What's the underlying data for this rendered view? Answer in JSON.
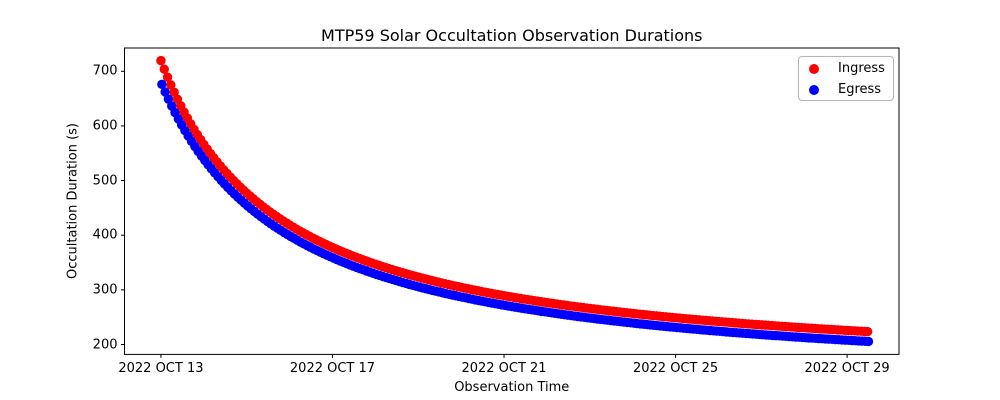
{
  "figure": {
    "title": "MTP59 Solar Occultation Observation Durations"
  },
  "chart_data": {
    "type": "scatter",
    "title": "MTP59 Solar Occultation Observation Durations",
    "xlabel": "Observation Time",
    "ylabel": "Occultation Duration (s)",
    "grid": false,
    "background": "#ffffff",
    "x_axis": {
      "unit": "days since 2022 OCT 13 00:00",
      "lim_days": [
        -0.85,
        17.21
      ],
      "tick_positions_days": [
        0,
        4,
        8,
        12,
        16
      ],
      "tick_labels": [
        "2022 OCT 13",
        "2022 OCT 17",
        "2022 OCT 21",
        "2022 OCT 25",
        "2022 OCT 29"
      ]
    },
    "y_axis": {
      "lim": [
        181.9,
        742.6
      ],
      "tick_values": [
        200,
        300,
        400,
        500,
        600,
        700
      ],
      "tick_labels": [
        "200",
        "300",
        "400",
        "500",
        "600",
        "700"
      ]
    },
    "legend": {
      "position": "upper right",
      "entries": [
        {
          "label": "Ingress",
          "color": "#ff0000"
        },
        {
          "label": "Egress",
          "color": "#0000ff"
        }
      ]
    },
    "series": [
      {
        "name": "Ingress",
        "color": "#ff0000",
        "marker": "filled-circle",
        "marker_radius_px": 4.7,
        "t_start_days": 0.0,
        "t_end_days": 16.48,
        "cadence_days": 0.077,
        "trend_model": {
          "form": "duration_s = offset + scale / (t_days + shift)",
          "offset": 140,
          "scale": 1611,
          "shift": 2.78
        },
        "sampled_points": {
          "t_days": [
            0,
            1,
            2,
            3,
            4,
            5,
            6,
            7,
            8,
            9,
            10,
            11,
            12,
            13,
            14,
            15,
            16,
            16.48
          ],
          "duration_s": [
            719,
            566,
            477,
            419,
            378,
            347,
            323,
            305,
            289,
            277,
            266,
            257,
            249,
            242,
            236,
            231,
            226,
            224
          ]
        }
      },
      {
        "name": "Egress",
        "color": "#0000ff",
        "marker": "filled-circle",
        "marker_radius_px": 4.7,
        "t_start_days": 0.02,
        "t_end_days": 16.55,
        "cadence_days": 0.077,
        "trend_model": {
          "form": "duration_s = offset + scale / (t_days + shift)",
          "offset": 120,
          "scale": 1667,
          "shift": 2.977
        },
        "sampled_points": {
          "t_days": [
            0,
            1,
            2,
            3,
            4,
            5,
            6,
            7,
            8,
            9,
            10,
            11,
            12,
            13,
            14,
            15,
            16,
            16.55
          ],
          "duration_s": [
            680,
            539,
            455,
            399,
            359,
            329,
            306,
            287,
            272,
            259,
            248,
            239,
            231,
            224,
            218,
            213,
            208,
            206
          ]
        }
      }
    ]
  }
}
